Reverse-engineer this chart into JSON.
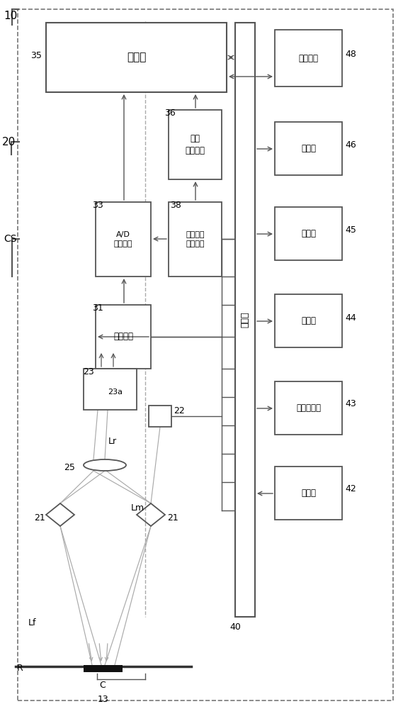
{
  "bg": "#ffffff",
  "ec": "#555555",
  "ec_dark": "#333333",
  "ray_color": "#aaaaaa",
  "text_35": "存储器",
  "text_36": "地址\n生成电路",
  "text_38": "同步信号\n生成电路",
  "text_33": "A/D\n转换电路",
  "text_31": "放大电路",
  "text_48": "通信接口",
  "text_46": "发光部",
  "text_45": "振动器",
  "text_44": "蒙鸣器",
  "text_43": "液晶显示器",
  "text_42": "操作部",
  "text_ctrl": "控制部",
  "lbl_10": "10",
  "lbl_20": "20",
  "lbl_CS": "CS",
  "lbl_35": "35",
  "lbl_36": "36",
  "lbl_38": "38",
  "lbl_33": "33",
  "lbl_31": "31",
  "lbl_40": "40",
  "lbl_48": "48",
  "lbl_46": "46",
  "lbl_45": "45",
  "lbl_44": "44",
  "lbl_43": "43",
  "lbl_42": "42",
  "lbl_23": "23",
  "lbl_23a": "23a",
  "lbl_25": "25",
  "lbl_22": "22",
  "lbl_21": "21",
  "lbl_13": "13",
  "lbl_Lr": "Lr",
  "lbl_Lm": "Lm",
  "lbl_Lf": "Lf",
  "lbl_R": "R",
  "lbl_C": "C"
}
